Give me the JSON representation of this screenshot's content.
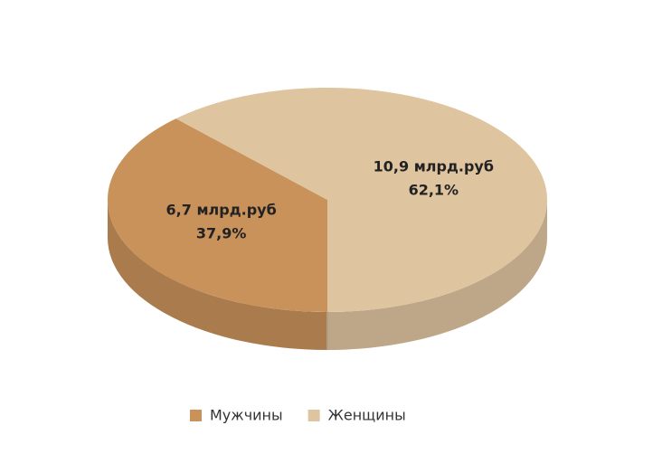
{
  "chart_data": {
    "type": "pie",
    "categories": [
      "Мужчины",
      "Женщины"
    ],
    "values": [
      37.9,
      62.1
    ],
    "value_labels": [
      "37,9%",
      "62,1%"
    ],
    "amounts": [
      6.7,
      10.9
    ],
    "amount_labels": [
      "6,7 млрд.руб",
      "10,9 млрд.руб"
    ],
    "colors": [
      "#c8925a",
      "#dfc4a0"
    ],
    "legend": "bottom"
  }
}
